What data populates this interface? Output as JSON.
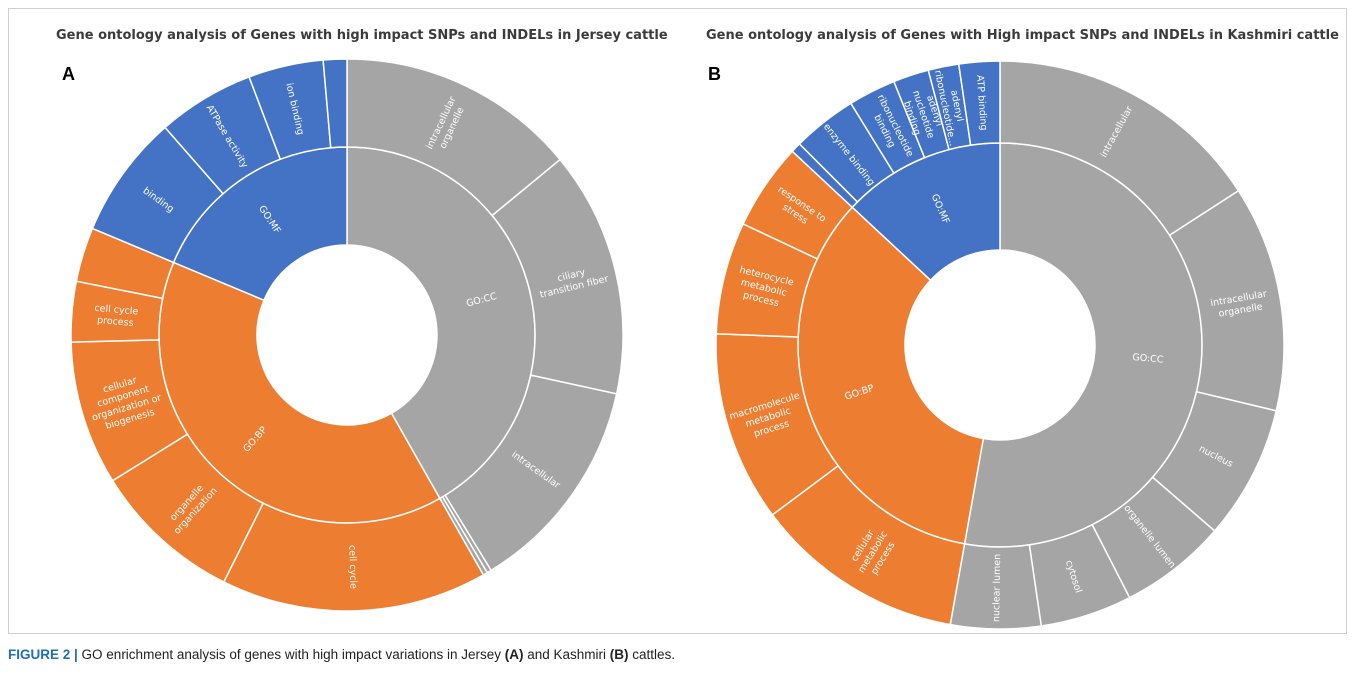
{
  "figure": {
    "caption_lead": "FIGURE 2 |",
    "caption_parts": [
      " GO enrichment analysis of genes with high impact variations in Jersey ",
      "(A)",
      " and Kashmiri ",
      "(B)",
      " cattles."
    ]
  },
  "colors": {
    "GO:CC": "#a5a5a5",
    "GO:BP": "#ed7d31",
    "GO:MF": "#4472c4",
    "stroke": "#ffffff",
    "label": "#ffffff"
  },
  "chart_data": [
    {
      "type": "sunburst",
      "panel": "A",
      "title": "Gene ontology analysis of Genes with high impact SNPs and INDELs in Jersey cattle",
      "start": "12 o'clock",
      "direction": "clockwise",
      "groups": [
        {
          "name": "GO:CC",
          "color": "#a5a5a5",
          "children": [
            {
              "name": "intracellular organelle",
              "value": 16.3
            },
            {
              "name": "ciliary transition fiber",
              "value": 16.7
            },
            {
              "name": "intracellular",
              "value": 14.9
            },
            {
              "name": "",
              "value": 0.3
            },
            {
              "name": "",
              "value": 0.3
            }
          ]
        },
        {
          "name": "GO:BP",
          "color": "#ed7d31",
          "children": [
            {
              "name": "cell cycle",
              "value": 18.1
            },
            {
              "name": "organelle organization",
              "value": 10.2
            },
            {
              "name": "cellular component organization or biogenesis",
              "value": 9.8
            },
            {
              "name": "cell cycle process",
              "value": 4.1
            },
            {
              "name": "",
              "value": 3.7
            }
          ]
        },
        {
          "name": "GO:MF",
          "color": "#4472c4",
          "children": [
            {
              "name": "binding",
              "value": 8.4
            },
            {
              "name": "ATPase activity",
              "value": 6.6
            },
            {
              "name": "ion binding",
              "value": 5.1
            },
            {
              "name": "",
              "value": 1.6
            }
          ]
        }
      ]
    },
    {
      "type": "sunburst",
      "panel": "B",
      "title": "Gene ontology analysis of Genes with High impact SNPs and INDELs in Kashmiri cattle",
      "start": "12 o'clock",
      "direction": "clockwise",
      "groups": [
        {
          "name": "GO:CC",
          "color": "#a5a5a5",
          "children": [
            {
              "name": "intracellular",
              "value": 16.4
            },
            {
              "name": "intracellular organelle",
              "value": 13.3
            },
            {
              "name": "nucleus",
              "value": 7.9
            },
            {
              "name": "organelle lumen",
              "value": 6.3
            },
            {
              "name": "cytosol",
              "value": 5.4
            },
            {
              "name": "nuclear lumen",
              "value": 5.3
            }
          ]
        },
        {
          "name": "GO:BP",
          "color": "#ed7d31",
          "children": [
            {
              "name": "cellular metabolic process",
              "value": 12.4
            },
            {
              "name": "macromolecule metabolic process",
              "value": 11.2
            },
            {
              "name": "heterocycle metabolic process",
              "value": 6.6
            },
            {
              "name": "response to stress",
              "value": 5.1
            }
          ]
        },
        {
          "name": "GO:MF",
          "color": "#4472c4",
          "children": [
            {
              "name": "",
              "value": 0.6
            },
            {
              "name": "enzyme binding",
              "value": 3.8
            },
            {
              "name": "ribonucleotide binding",
              "value": 2.8
            },
            {
              "name": "adenyl nucleotide binding",
              "value": 2.1
            },
            {
              "name": "adenyl ribonucleotide...",
              "value": 1.8
            },
            {
              "name": "ATP binding",
              "value": 2.4
            }
          ]
        }
      ]
    }
  ]
}
